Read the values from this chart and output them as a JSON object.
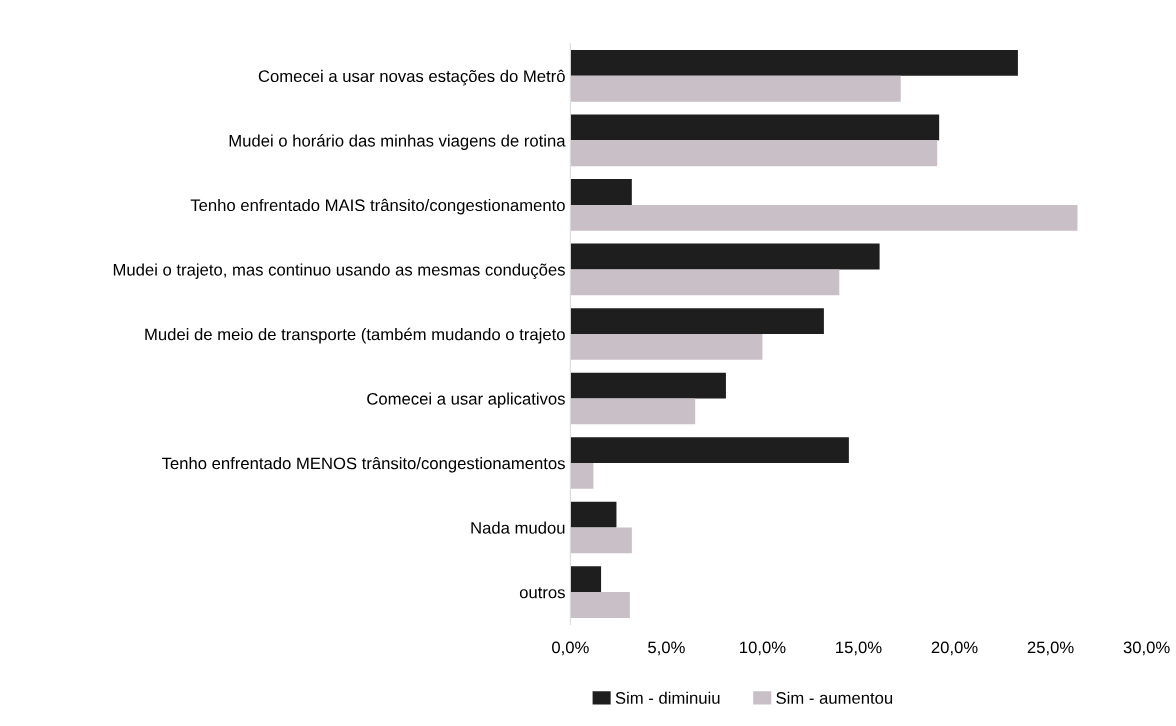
{
  "chart_data": {
    "type": "bar",
    "orientation": "horizontal",
    "categories": [
      "Comecei a usar novas estações do Metrô",
      "Mudei o horário das minhas viagens de rotina",
      "Tenho enfrentado MAIS trânsito/congestionamento",
      "Mudei o trajeto, mas continuo usando as mesmas conduções",
      "Mudei de meio de transporte (também mudando o trajeto",
      "Comecei a usar aplicativos",
      "Tenho enfrentado MENOS trânsito/congestionamentos",
      "Nada mudou",
      "outros"
    ],
    "series": [
      {
        "name": "Sim - diminuiu",
        "color": "#1e1e1e",
        "values": [
          23.3,
          19.2,
          3.2,
          16.1,
          13.2,
          8.1,
          14.5,
          2.4,
          1.6
        ]
      },
      {
        "name": "Sim - aumentou",
        "color": "#c8c0c6",
        "values": [
          17.2,
          19.1,
          26.4,
          14.0,
          10.0,
          6.5,
          1.2,
          3.2,
          3.1
        ]
      }
    ],
    "xlim": [
      0,
      30
    ],
    "xticks": [
      {
        "value": 0,
        "label": "0,0%"
      },
      {
        "value": 5,
        "label": "5,0%"
      },
      {
        "value": 10,
        "label": "10,0%"
      },
      {
        "value": 15,
        "label": "15,0%"
      },
      {
        "value": 20,
        "label": "20,0%"
      },
      {
        "value": 25,
        "label": "25,0%"
      },
      {
        "value": 30,
        "label": "30,0%"
      }
    ],
    "grid": false,
    "legend": "bottom"
  }
}
